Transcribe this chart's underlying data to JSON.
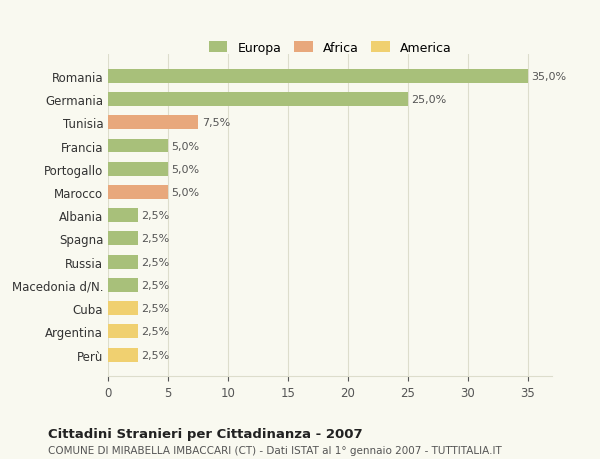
{
  "categories": [
    "Romania",
    "Germania",
    "Tunisia",
    "Francia",
    "Portogallo",
    "Marocco",
    "Albania",
    "Spagna",
    "Russia",
    "Macedonia d/N.",
    "Cuba",
    "Argentina",
    "Perù"
  ],
  "values": [
    35.0,
    25.0,
    7.5,
    5.0,
    5.0,
    5.0,
    2.5,
    2.5,
    2.5,
    2.5,
    2.5,
    2.5,
    2.5
  ],
  "labels": [
    "35,0%",
    "25,0%",
    "7,5%",
    "5,0%",
    "5,0%",
    "5,0%",
    "2,5%",
    "2,5%",
    "2,5%",
    "2,5%",
    "2,5%",
    "2,5%",
    "2,5%"
  ],
  "colors": [
    "#a8c07a",
    "#a8c07a",
    "#e8a87c",
    "#a8c07a",
    "#a8c07a",
    "#e8a87c",
    "#a8c07a",
    "#a8c07a",
    "#a8c07a",
    "#a8c07a",
    "#f0d070",
    "#f0d070",
    "#f0d070"
  ],
  "legend_labels": [
    "Europa",
    "Africa",
    "America"
  ],
  "legend_colors": [
    "#a8c07a",
    "#e8a87c",
    "#f0d070"
  ],
  "title": "Cittadini Stranieri per Cittadinanza - 2007",
  "subtitle": "COMUNE DI MIRABELLA IMBACCARI (CT) - Dati ISTAT al 1° gennaio 2007 - TUTTITALIA.IT",
  "xlim": [
    0,
    37
  ],
  "xticks": [
    0,
    5,
    10,
    15,
    20,
    25,
    30,
    35
  ],
  "background_color": "#f9f9f0",
  "grid_color": "#ddddcc"
}
